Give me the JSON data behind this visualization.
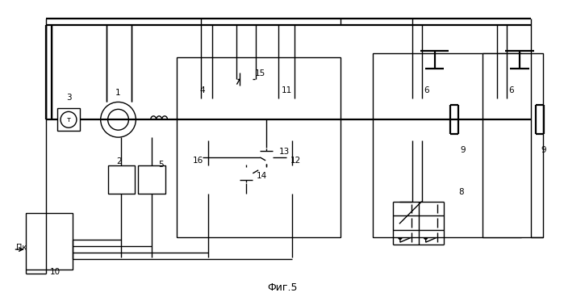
{
  "title": "Фиг.5",
  "bg_color": "#ffffff",
  "line_color": "#000000",
  "fig_width": 6.99,
  "fig_height": 3.73,
  "dpi": 100
}
